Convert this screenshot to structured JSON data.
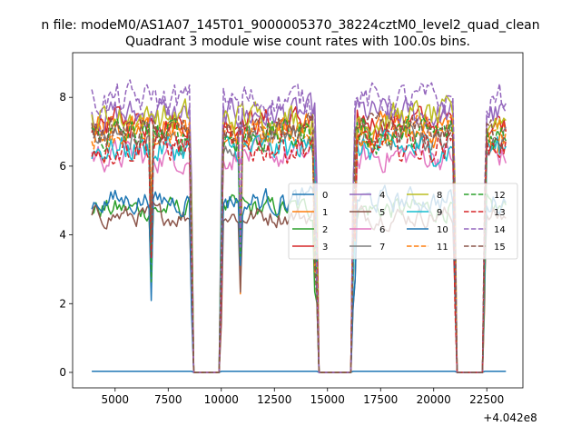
{
  "chart_data": {
    "type": "line",
    "suptitle": "n file: modeM0/AS1A07_145T01_9000005370_38224cztM0_level2_quad_clean",
    "title": "Quadrant 3 module wise count rates with 100.0s bins.",
    "xlabel": "",
    "ylabel": "",
    "x_offset_label": "+4.042e8",
    "xlim": [
      3000,
      24200
    ],
    "ylim": [
      -0.45,
      9.3
    ],
    "x_ticks": [
      5000,
      7500,
      10000,
      12500,
      15000,
      17500,
      20000,
      22500
    ],
    "x_tick_labels": [
      "5000",
      "7500",
      "10000",
      "12500",
      "15000",
      "17500",
      "20000",
      "22500"
    ],
    "y_ticks": [
      0,
      2,
      4,
      6,
      8
    ],
    "y_tick_labels": [
      "0",
      "2",
      "4",
      "6",
      "8"
    ],
    "x_range": [
      3900,
      23400
    ],
    "bin_size": 100,
    "gaps": [
      [
        8700,
        9900
      ],
      [
        14600,
        16100
      ],
      [
        21100,
        22300
      ]
    ],
    "series": [
      {
        "name": "0",
        "color": "#1f77b4",
        "style": "solid",
        "level": 0.03,
        "noise": 0.0
      },
      {
        "name": "1",
        "color": "#ff7f0e",
        "style": "solid",
        "level": 7.0,
        "noise": 0.4
      },
      {
        "name": "2",
        "color": "#2ca02c",
        "style": "solid",
        "level": 4.75,
        "noise": 0.28
      },
      {
        "name": "3",
        "color": "#d62728",
        "style": "solid",
        "level": 7.3,
        "noise": 0.35
      },
      {
        "name": "4",
        "color": "#9467bd",
        "style": "solid",
        "level": 7.5,
        "noise": 0.38
      },
      {
        "name": "5",
        "color": "#8c564b",
        "style": "solid",
        "level": 4.55,
        "noise": 0.25
      },
      {
        "name": "6",
        "color": "#e377c2",
        "style": "solid",
        "level": 6.3,
        "noise": 0.35
      },
      {
        "name": "7",
        "color": "#7f7f7f",
        "style": "solid",
        "level": 6.8,
        "noise": 0.35
      },
      {
        "name": "8",
        "color": "#bcbd22",
        "style": "solid",
        "level": 7.4,
        "noise": 0.4
      },
      {
        "name": "9",
        "color": "#17becf",
        "style": "solid",
        "level": 6.5,
        "noise": 0.35
      },
      {
        "name": "10",
        "color": "#1f77b4",
        "style": "solid",
        "level": 5.0,
        "noise": 0.3
      },
      {
        "name": "11",
        "color": "#ff7f0e",
        "style": "dashed",
        "level": 7.0,
        "noise": 0.35
      },
      {
        "name": "12",
        "color": "#2ca02c",
        "style": "dashed",
        "level": 6.9,
        "noise": 0.4
      },
      {
        "name": "13",
        "color": "#d62728",
        "style": "dashed",
        "level": 6.6,
        "noise": 0.4
      },
      {
        "name": "14",
        "color": "#9467bd",
        "style": "dashed",
        "level": 7.9,
        "noise": 0.4
      },
      {
        "name": "15",
        "color": "#8c564b",
        "style": "dashed",
        "level": 7.0,
        "noise": 0.35
      }
    ],
    "legend": {
      "location": "center-right",
      "columns": 4
    }
  }
}
